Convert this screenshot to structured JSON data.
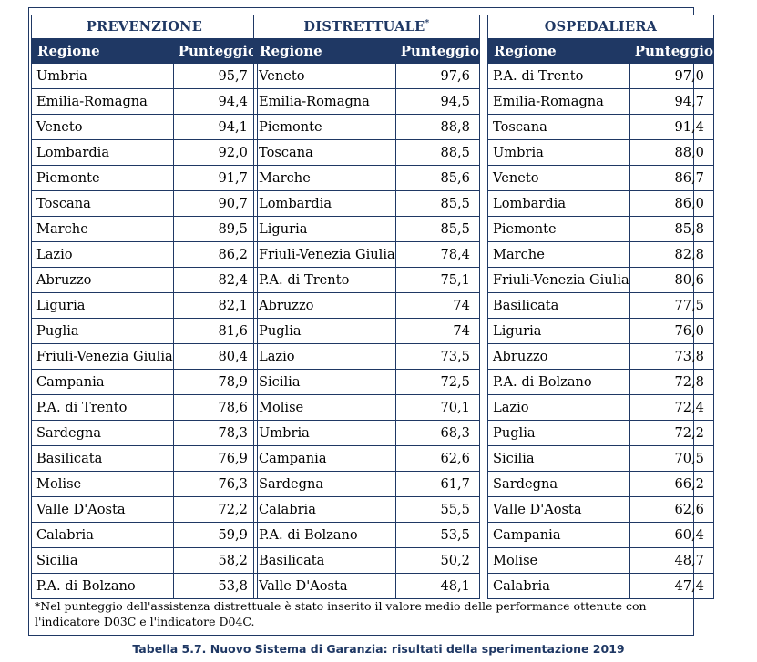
{
  "tables": [
    {
      "title": "PREVENZIONE",
      "col_region": "Regione",
      "col_score": "Punteggio",
      "rows": [
        [
          "Umbria",
          "95,7"
        ],
        [
          "Emilia-Romagna",
          "94,4"
        ],
        [
          "Veneto",
          "94,1"
        ],
        [
          "Lombardia",
          "92,0"
        ],
        [
          "Piemonte",
          "91,7"
        ],
        [
          "Toscana",
          "90,7"
        ],
        [
          "Marche",
          "89,5"
        ],
        [
          "Lazio",
          "86,2"
        ],
        [
          "Abruzzo",
          "82,4"
        ],
        [
          "Liguria",
          "82,1"
        ],
        [
          "Puglia",
          "81,6"
        ],
        [
          "Friuli-Venezia Giulia",
          "80,4"
        ],
        [
          "Campania",
          "78,9"
        ],
        [
          "P.A. di Trento",
          "78,6"
        ],
        [
          "Sardegna",
          "78,3"
        ],
        [
          "Basilicata",
          "76,9"
        ],
        [
          "Molise",
          "76,3"
        ],
        [
          "Valle D'Aosta",
          "72,2"
        ],
        [
          "Calabria",
          "59,9"
        ],
        [
          "Sicilia",
          "58,2"
        ],
        [
          "P.A. di Bolzano",
          "53,8"
        ]
      ]
    },
    {
      "title": "DISTRETTUALE",
      "title_mark": "*",
      "col_region": "Regione",
      "col_score": "Punteggio",
      "rows": [
        [
          "Veneto",
          "97,6"
        ],
        [
          "Emilia-Romagna",
          "94,5"
        ],
        [
          "Piemonte",
          "88,8"
        ],
        [
          "Toscana",
          "88,5"
        ],
        [
          "Marche",
          "85,6"
        ],
        [
          "Lombardia",
          "85,5"
        ],
        [
          "Liguria",
          "85,5"
        ],
        [
          "Friuli-Venezia Giulia",
          "78,4"
        ],
        [
          "P.A. di Trento",
          "75,1"
        ],
        [
          "Abruzzo",
          "74"
        ],
        [
          "Puglia",
          "74"
        ],
        [
          "Lazio",
          "73,5"
        ],
        [
          "Sicilia",
          "72,5"
        ],
        [
          "Molise",
          "70,1"
        ],
        [
          "Umbria",
          "68,3"
        ],
        [
          "Campania",
          "62,6"
        ],
        [
          "Sardegna",
          "61,7"
        ],
        [
          "Calabria",
          "55,5"
        ],
        [
          "P.A. di Bolzano",
          "53,5"
        ],
        [
          "Basilicata",
          "50,2"
        ],
        [
          "Valle D'Aosta",
          "48,1"
        ]
      ]
    },
    {
      "title": "OSPEDALIERA",
      "col_region": "Regione",
      "col_score": "Punteggio",
      "rows": [
        [
          "P.A. di Trento",
          "97,0"
        ],
        [
          "Emilia-Romagna",
          "94,7"
        ],
        [
          "Toscana",
          "91,4"
        ],
        [
          "Umbria",
          "88,0"
        ],
        [
          "Veneto",
          "86,7"
        ],
        [
          "Lombardia",
          "86,0"
        ],
        [
          "Piemonte",
          "85,8"
        ],
        [
          "Marche",
          "82,8"
        ],
        [
          "Friuli-Venezia Giulia",
          "80,6"
        ],
        [
          "Basilicata",
          "77,5"
        ],
        [
          "Liguria",
          "76,0"
        ],
        [
          "Abruzzo",
          "73,8"
        ],
        [
          "P.A. di Bolzano",
          "72,8"
        ],
        [
          "Lazio",
          "72,4"
        ],
        [
          "Puglia",
          "72,2"
        ],
        [
          "Sicilia",
          "70,5"
        ],
        [
          "Sardegna",
          "66,2"
        ],
        [
          "Valle D'Aosta",
          "62,6"
        ],
        [
          "Campania",
          "60,4"
        ],
        [
          "Molise",
          "48,7"
        ],
        [
          "Calabria",
          "47,4"
        ]
      ]
    }
  ],
  "footnote": "*Nel punteggio dell'assistenza distrettuale è stato inserito il valore medio delle performance ottenute con l'indicatore D03C e l'indicatore D04C.",
  "caption": "Tabella 5.7. Nuovo Sistema di Garanzia: risultati della sperimentazione 2019",
  "colors": {
    "header_bg": "#1f3864",
    "border": "#1f3864",
    "title_text": "#1f3864"
  }
}
